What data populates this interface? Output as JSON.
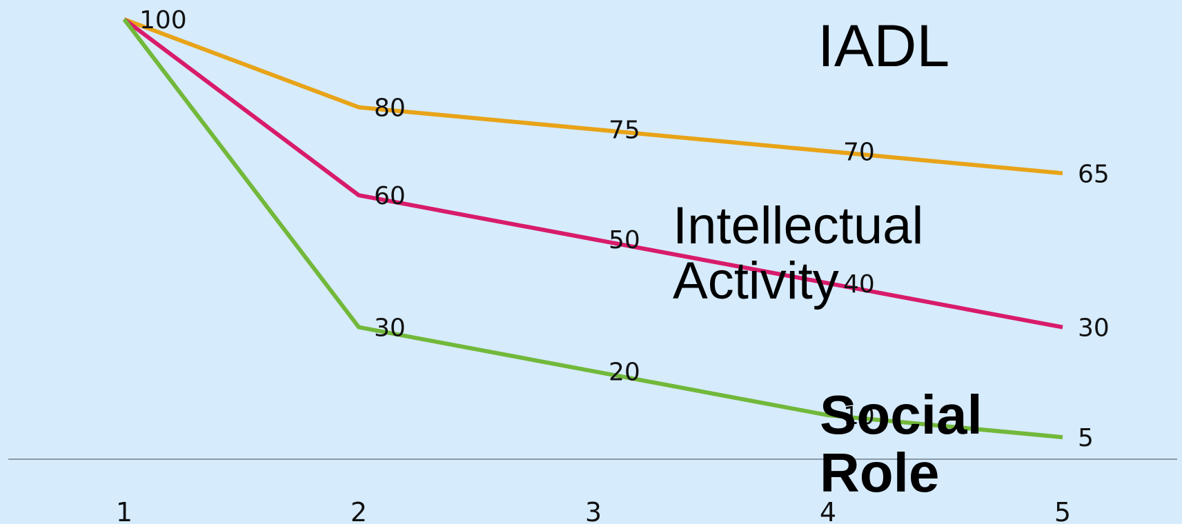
{
  "chart_data": {
    "type": "line",
    "title": "",
    "xlabel": "",
    "ylabel": "",
    "categories": [
      "1",
      "2",
      "3",
      "4",
      "5"
    ],
    "ylim": [
      0,
      105
    ],
    "grid": false,
    "legend": "inline labels",
    "series": [
      {
        "name": "IADL",
        "values": [
          100,
          80,
          75,
          70,
          65
        ],
        "color": "#e8a317"
      },
      {
        "name": "Intellectual\nActivity",
        "values": [
          100,
          60,
          50,
          40,
          30
        ],
        "color": "#d81b6a"
      },
      {
        "name": "Social\nRole",
        "values": [
          100,
          30,
          20,
          10,
          5
        ],
        "color": "#72b83a"
      }
    ]
  }
}
